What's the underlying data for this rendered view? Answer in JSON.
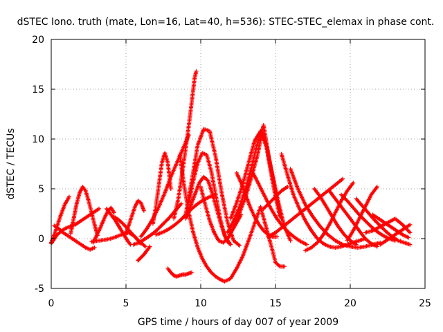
{
  "chart_data": {
    "type": "scatter",
    "title": "dSTEC Iono. truth (mate, Lon=16, Lat=40, h=536): STEC-STEC_elemax in phase cont.",
    "xlabel": "GPS time / hours of day 007 of year 2009",
    "ylabel": "dSTEC  / TECUs",
    "xlim": [
      0,
      25
    ],
    "ylim": [
      -5,
      20
    ],
    "xticks": [
      0,
      5,
      10,
      15,
      20,
      25
    ],
    "yticks": [
      -5,
      0,
      5,
      10,
      15,
      20
    ],
    "xtick_labels": [
      "0",
      "5",
      "10",
      "15",
      "20",
      "25"
    ],
    "ytick_labels": [
      "-5",
      "0",
      "5",
      "10",
      "15",
      "20"
    ],
    "grid": true,
    "marker": "plus",
    "series_color": "#ff0000",
    "series": [
      {
        "x": [
          0.0,
          0.3,
          0.6,
          0.9,
          1.2
        ],
        "y": [
          -0.4,
          0.8,
          2.2,
          3.4,
          4.2
        ]
      },
      {
        "x": [
          0.0,
          0.4,
          0.8,
          1.2,
          1.6,
          2.0,
          2.4,
          2.8,
          3.2
        ],
        "y": [
          -0.5,
          0.4,
          0.9,
          1.2,
          1.4,
          1.8,
          2.2,
          2.6,
          3.0
        ]
      },
      {
        "x": [
          0.2,
          0.5,
          0.8,
          1.1,
          1.4,
          1.7,
          2.0,
          2.3,
          2.6,
          2.9
        ],
        "y": [
          1.3,
          1.0,
          0.6,
          0.3,
          0.0,
          -0.3,
          -0.6,
          -0.9,
          -1.1,
          -0.9
        ]
      },
      {
        "x": [
          1.3,
          1.5,
          1.7,
          1.9,
          2.1,
          2.3,
          2.5,
          2.7,
          2.9,
          3.1
        ],
        "y": [
          0.5,
          2.0,
          3.5,
          4.6,
          5.2,
          4.8,
          3.8,
          2.6,
          1.4,
          0.3
        ]
      },
      {
        "x": [
          2.8,
          3.0,
          3.2,
          3.4,
          3.6,
          3.8,
          4.0,
          4.2
        ],
        "y": [
          -0.4,
          0.2,
          0.8,
          1.5,
          2.2,
          2.8,
          3.1,
          2.6
        ]
      },
      {
        "x": [
          3.7,
          3.9,
          4.1,
          4.3,
          4.5,
          4.7,
          4.9,
          5.1,
          5.3
        ],
        "y": [
          3.0,
          2.6,
          2.2,
          1.8,
          1.3,
          0.8,
          0.3,
          -0.2,
          -0.6
        ]
      },
      {
        "x": [
          2.7,
          3.2,
          3.7,
          4.2,
          4.7,
          5.2,
          5.6,
          6.0
        ],
        "y": [
          -0.3,
          -0.2,
          -0.1,
          0.1,
          0.4,
          0.6,
          0.2,
          -0.5
        ]
      },
      {
        "x": [
          4.2,
          4.5,
          4.8,
          5.1,
          5.4,
          5.7,
          6.0,
          6.3
        ],
        "y": [
          2.2,
          1.9,
          1.5,
          1.0,
          0.5,
          0.0,
          -0.4,
          -0.8
        ]
      },
      {
        "x": [
          5.0,
          5.2,
          5.4,
          5.6,
          5.8,
          6.0,
          6.2
        ],
        "y": [
          0.6,
          1.4,
          2.3,
          3.2,
          3.8,
          3.6,
          2.8
        ]
      },
      {
        "x": [
          5.8,
          6.0,
          6.2,
          6.4,
          6.6
        ],
        "y": [
          -2.2,
          -1.9,
          -1.6,
          -1.2,
          -0.8
        ]
      },
      {
        "x": [
          5.5,
          5.9,
          6.3,
          6.7,
          7.1,
          7.5,
          7.9,
          8.3,
          8.7
        ],
        "y": [
          -0.6,
          -0.4,
          0.0,
          0.4,
          0.9,
          1.5,
          2.1,
          2.8,
          3.5
        ]
      },
      {
        "x": [
          6.0,
          6.4,
          6.8,
          7.2,
          7.6,
          8.0,
          8.4,
          8.8,
          9.2
        ],
        "y": [
          0.2,
          1.0,
          2.0,
          3.2,
          4.6,
          6.2,
          7.6,
          9.0,
          10.4
        ]
      },
      {
        "x": [
          6.8,
          7.0,
          7.2,
          7.4,
          7.6,
          7.8,
          8.0
        ],
        "y": [
          1.5,
          3.2,
          5.4,
          7.6,
          8.6,
          7.6,
          5.0
        ]
      },
      {
        "x": [
          7.8,
          8.0,
          8.2,
          8.4,
          8.6,
          8.8,
          9.0,
          9.2,
          9.4
        ],
        "y": [
          -3.0,
          -3.4,
          -3.7,
          -3.8,
          -3.7,
          -3.6,
          -3.6,
          -3.5,
          -3.4
        ]
      },
      {
        "x": [
          8.2,
          8.5,
          8.8,
          9.1,
          9.3,
          9.5,
          9.6,
          9.7
        ],
        "y": [
          2.0,
          4.0,
          7.0,
          10.2,
          12.5,
          15.0,
          16.2,
          16.8
        ]
      },
      {
        "x": [
          8.6,
          8.9,
          9.2,
          9.5,
          9.8,
          10.1,
          10.4,
          10.7,
          11.0,
          11.3,
          11.6,
          12.0,
          12.4,
          12.8,
          13.2,
          13.6,
          14.0,
          14.4,
          14.8,
          15.0,
          15.3,
          15.6
        ],
        "y": [
          8.4,
          5.2,
          2.6,
          0.6,
          -0.9,
          -2.0,
          -2.8,
          -3.4,
          -3.8,
          -4.1,
          -4.3,
          -4.0,
          -3.0,
          -1.8,
          -0.2,
          1.5,
          3.2,
          1.0,
          -1.2,
          -2.4,
          -2.8,
          -2.8
        ]
      },
      {
        "x": [
          9.0,
          9.4,
          9.8,
          10.2,
          10.6,
          11.0,
          11.4,
          11.8,
          12.2,
          12.6
        ],
        "y": [
          2.5,
          5.8,
          9.4,
          11.0,
          10.8,
          8.2,
          4.6,
          1.6,
          -0.2,
          -0.7
        ]
      },
      {
        "x": [
          9.2,
          9.5,
          9.8,
          10.1,
          10.4,
          10.7,
          11.0,
          11.3,
          11.6,
          11.9
        ],
        "y": [
          3.6,
          5.8,
          7.6,
          8.6,
          8.4,
          6.8,
          4.4,
          2.0,
          0.3,
          -0.5
        ]
      },
      {
        "x": [
          9.0,
          9.3,
          9.6,
          9.9,
          10.2,
          10.5,
          10.8,
          11.1,
          11.4,
          11.7,
          12.0
        ],
        "y": [
          2.0,
          3.2,
          4.4,
          5.6,
          6.2,
          5.8,
          4.4,
          2.8,
          1.2,
          0.0,
          -0.6
        ]
      },
      {
        "x": [
          7.0,
          7.4,
          7.8,
          8.2,
          8.6,
          9.0,
          9.4,
          9.8,
          10.2,
          10.6,
          11.0
        ],
        "y": [
          0.4,
          0.6,
          0.9,
          1.3,
          1.8,
          2.4,
          3.0,
          3.5,
          3.9,
          4.2,
          4.4
        ]
      },
      {
        "x": [
          10.0,
          10.3,
          10.6,
          10.9,
          11.2,
          11.5,
          11.8,
          12.1,
          12.4,
          12.7
        ],
        "y": [
          5.2,
          3.4,
          1.8,
          0.6,
          -0.2,
          -0.4,
          0.0,
          0.8,
          1.6,
          2.4
        ]
      },
      {
        "x": [
          11.8,
          12.2,
          12.6,
          13.0,
          13.4,
          13.8,
          14.1,
          14.4,
          14.7,
          15.0,
          15.3
        ],
        "y": [
          0.6,
          1.8,
          3.2,
          5.0,
          7.2,
          9.6,
          11.0,
          9.2,
          6.6,
          4.2,
          2.2
        ]
      },
      {
        "x": [
          12.2,
          12.6,
          13.0,
          13.4,
          13.8,
          14.2,
          14.6,
          15.0,
          15.4
        ],
        "y": [
          1.2,
          2.6,
          4.2,
          6.2,
          8.4,
          11.4,
          7.8,
          4.6,
          2.0
        ]
      },
      {
        "x": [
          12.0,
          12.4,
          12.8,
          13.2,
          13.6,
          14.0,
          14.4,
          14.8,
          15.2,
          15.6,
          16.0
        ],
        "y": [
          2.0,
          3.6,
          5.4,
          7.6,
          9.8,
          10.8,
          9.2,
          6.4,
          3.6,
          1.2,
          -0.2
        ]
      },
      {
        "x": [
          12.4,
          12.7,
          13.0,
          13.3,
          13.6,
          13.9,
          14.2,
          14.5,
          14.8,
          15.1
        ],
        "y": [
          6.6,
          5.6,
          4.4,
          3.2,
          2.2,
          1.4,
          0.8,
          0.4,
          0.2,
          0.2
        ]
      },
      {
        "x": [
          13.5,
          13.9,
          14.3,
          14.7,
          15.1,
          15.5,
          15.9,
          16.3,
          16.7,
          17.1
        ],
        "y": [
          6.6,
          5.4,
          4.2,
          3.0,
          2.0,
          1.2,
          0.6,
          0.1,
          -0.3,
          -0.6
        ]
      },
      {
        "x": [
          14.2,
          14.6,
          15.0,
          15.4,
          15.8
        ],
        "y": [
          3.0,
          3.6,
          4.2,
          4.8,
          5.2
        ]
      },
      {
        "x": [
          15.4,
          15.8,
          16.2,
          16.6,
          17.0,
          17.4,
          17.8,
          18.2,
          18.6,
          19.0,
          19.4,
          19.8,
          20.2,
          20.6,
          21.0
        ],
        "y": [
          8.5,
          6.4,
          4.4,
          3.0,
          1.8,
          0.8,
          0.0,
          -0.5,
          -0.8,
          -0.9,
          -0.8,
          -0.6,
          -0.4,
          -0.2,
          0.0
        ]
      },
      {
        "x": [
          16.0,
          16.5,
          17.0,
          17.5,
          18.0,
          18.5,
          19.0,
          19.5,
          20.0,
          20.5,
          21.0,
          21.5,
          22.0
        ],
        "y": [
          7.0,
          5.0,
          3.4,
          2.2,
          1.2,
          0.4,
          -0.2,
          -0.6,
          -0.8,
          -0.9,
          -0.8,
          -0.6,
          -0.4
        ]
      },
      {
        "x": [
          14.5,
          15.0,
          15.5,
          16.0,
          16.5,
          17.0,
          17.5,
          18.0,
          18.5,
          19.0,
          19.5
        ],
        "y": [
          0.2,
          0.6,
          1.2,
          1.8,
          2.4,
          3.0,
          3.6,
          4.2,
          4.8,
          5.4,
          6.0
        ]
      },
      {
        "x": [
          17.0,
          17.4,
          17.8,
          18.2,
          18.6,
          19.0,
          19.4,
          19.8,
          20.2
        ],
        "y": [
          -1.2,
          -0.9,
          -0.4,
          0.4,
          1.4,
          2.6,
          3.8,
          4.8,
          5.6
        ]
      },
      {
        "x": [
          17.6,
          18.0,
          18.4,
          18.8,
          19.2,
          19.6,
          20.0,
          20.4
        ],
        "y": [
          5.0,
          4.2,
          3.2,
          2.2,
          1.2,
          0.4,
          -0.2,
          -0.6
        ]
      },
      {
        "x": [
          18.6,
          19.0,
          19.4,
          19.8,
          20.2,
          20.6,
          21.0,
          21.4,
          21.8
        ],
        "y": [
          4.8,
          4.0,
          3.2,
          2.4,
          1.6,
          0.8,
          0.0,
          -0.5,
          -0.8
        ]
      },
      {
        "x": [
          19.4,
          19.8,
          20.2,
          20.6,
          21.0,
          21.4,
          21.8,
          22.2,
          22.6,
          23.0
        ],
        "y": [
          4.4,
          3.8,
          3.1,
          2.4,
          1.8,
          1.2,
          0.7,
          0.3,
          0.0,
          -0.2
        ]
      },
      {
        "x": [
          20.4,
          20.8,
          21.2,
          21.6,
          22.0,
          22.4,
          22.8,
          23.2,
          23.6,
          24.0
        ],
        "y": [
          4.0,
          3.3,
          2.6,
          1.9,
          1.3,
          0.7,
          0.2,
          -0.2,
          -0.4,
          -0.6
        ]
      },
      {
        "x": [
          19.8,
          20.2,
          20.6,
          21.0,
          21.4,
          21.8
        ],
        "y": [
          -0.2,
          0.8,
          2.0,
          3.2,
          4.4,
          5.2
        ]
      },
      {
        "x": [
          21.5,
          21.9,
          22.3,
          22.7,
          23.1,
          23.5,
          23.9
        ],
        "y": [
          2.4,
          2.0,
          1.6,
          1.2,
          0.8,
          0.4,
          0.1
        ]
      },
      {
        "x": [
          22.0,
          22.4,
          22.8,
          23.2,
          23.6,
          24.0
        ],
        "y": [
          -0.6,
          -0.2,
          0.2,
          0.6,
          1.0,
          1.4
        ]
      },
      {
        "x": [
          21.0,
          21.5,
          22.0,
          22.5,
          23.0,
          23.5,
          24.0
        ],
        "y": [
          0.6,
          0.8,
          1.2,
          1.6,
          2.0,
          1.4,
          0.6
        ]
      }
    ]
  }
}
